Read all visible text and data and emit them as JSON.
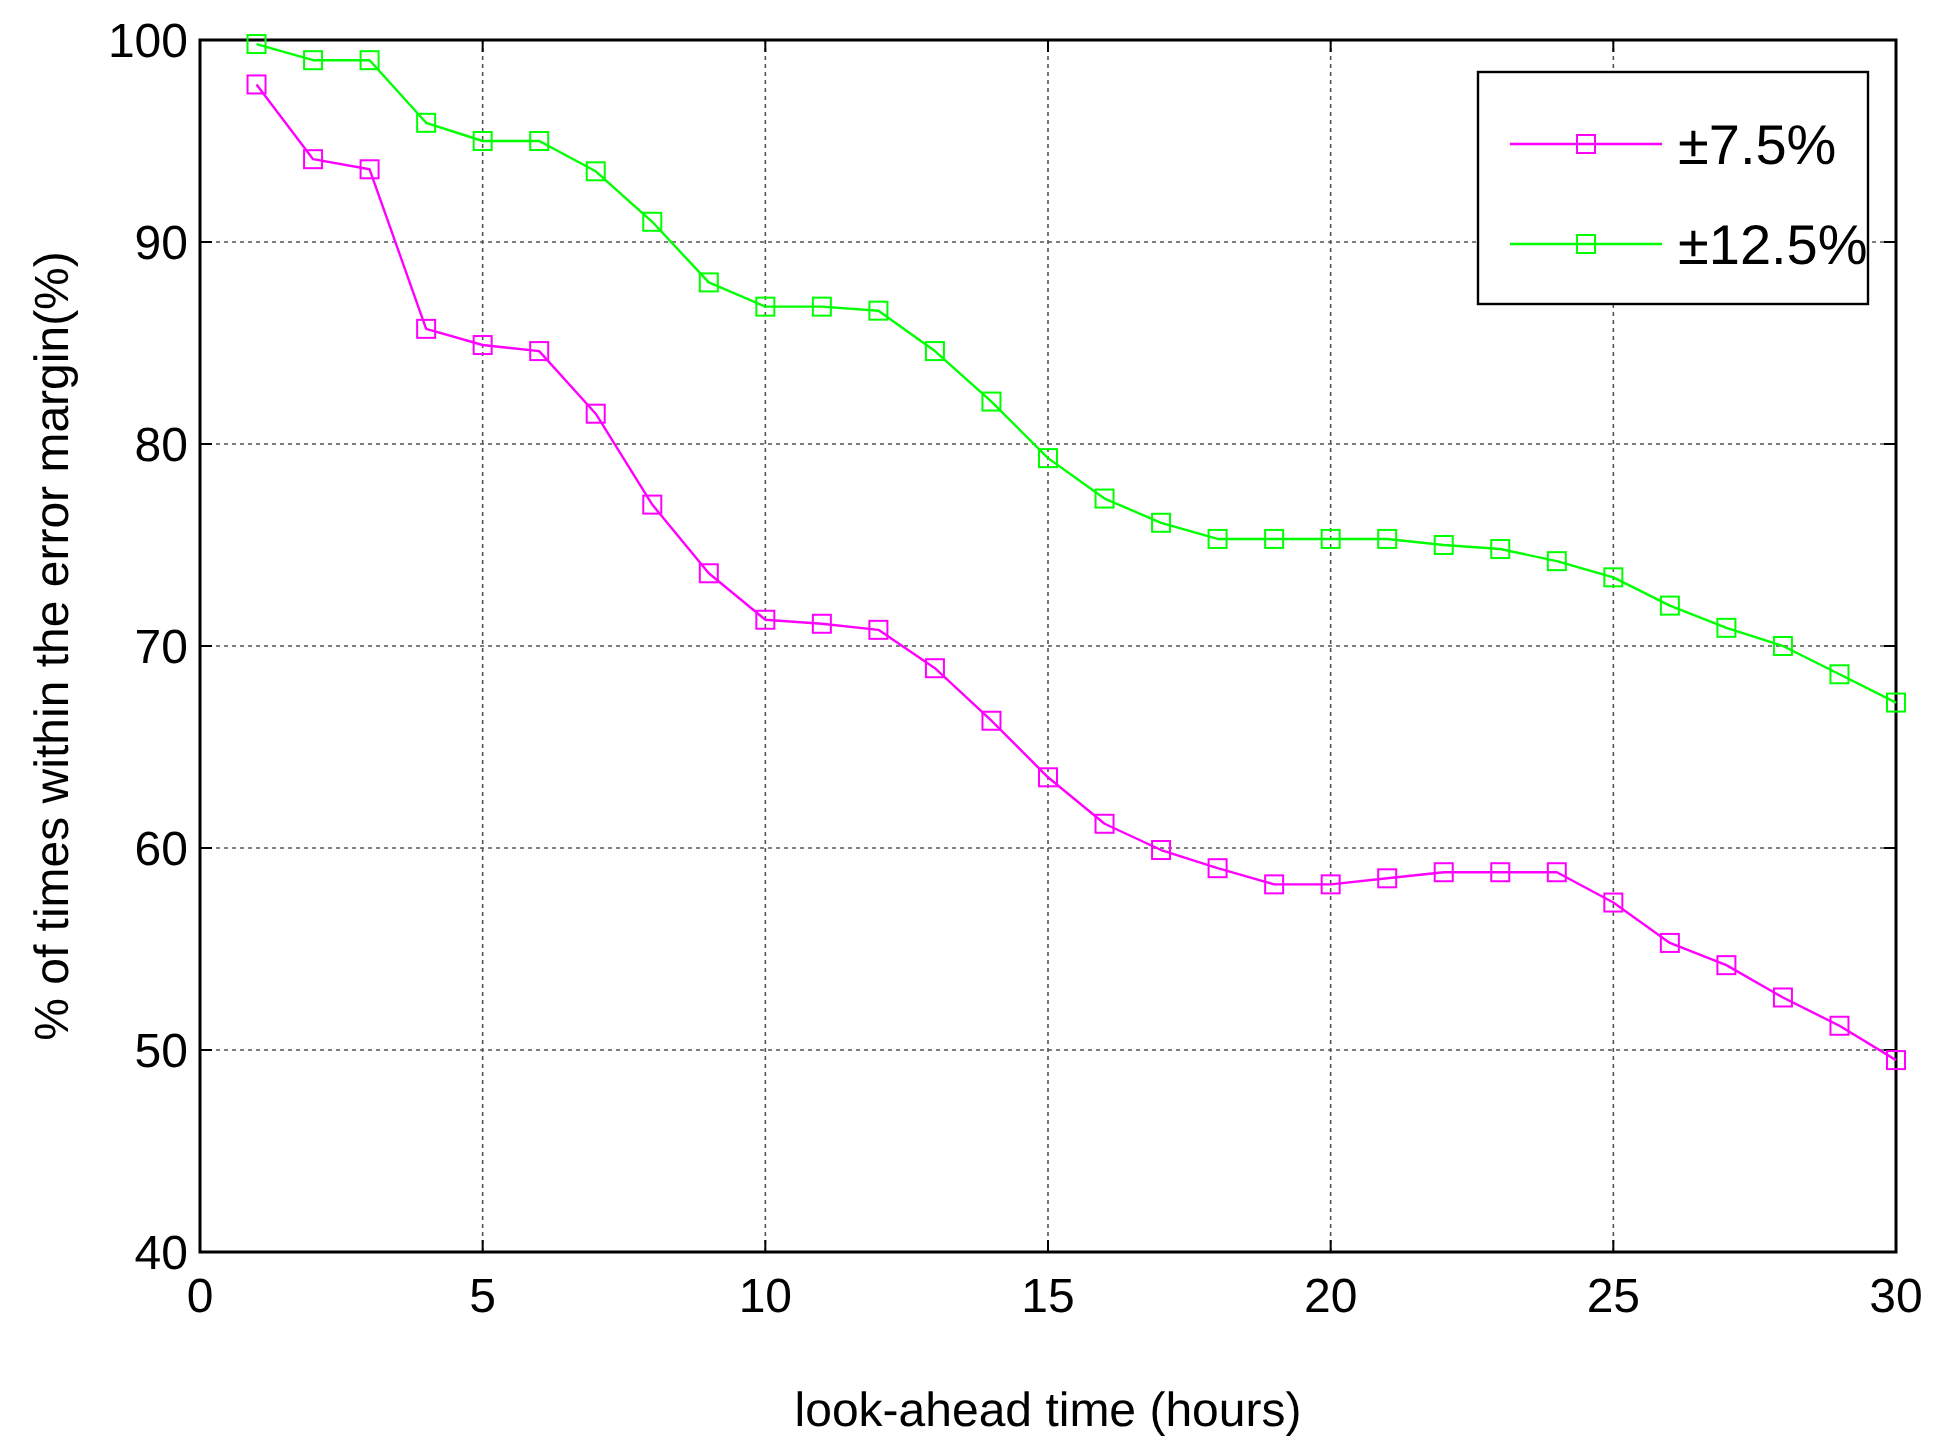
{
  "chart_data": {
    "type": "line",
    "xlabel": "look-ahead time (hours)",
    "ylabel": "% of times within the error margin(%)",
    "x": [
      1,
      2,
      3,
      4,
      5,
      6,
      7,
      8,
      9,
      10,
      11,
      12,
      13,
      14,
      15,
      16,
      17,
      18,
      19,
      20,
      21,
      22,
      23,
      24,
      25,
      26,
      27,
      28,
      29,
      30
    ],
    "series": [
      {
        "name": "±7.5%",
        "color": "#ff00ff",
        "values": [
          97.8,
          94.1,
          93.6,
          85.7,
          84.9,
          84.6,
          81.5,
          77,
          73.6,
          71.3,
          71.1,
          70.8,
          68.9,
          66.3,
          63.5,
          61.2,
          59.9,
          59.0,
          58.2,
          58.2,
          58.5,
          58.8,
          58.8,
          58.8,
          57.3,
          55.3,
          54.2,
          52.6,
          51.2,
          49.5
        ]
      },
      {
        "name": "±12.5%",
        "color": "#00ff00",
        "values": [
          99.8,
          99,
          99,
          95.9,
          95,
          95,
          93.5,
          91,
          88,
          86.8,
          86.8,
          86.6,
          84.6,
          82.1,
          79.3,
          77.3,
          76.1,
          75.3,
          75.3,
          75.3,
          75.3,
          75.0,
          74.8,
          74.2,
          73.4,
          72,
          70.9,
          70,
          68.6,
          67.2
        ]
      }
    ],
    "xlim": [
      0,
      30
    ],
    "xticks": [
      0,
      5,
      10,
      15,
      20,
      25,
      30
    ],
    "ylim": [
      40,
      100
    ],
    "yticks": [
      40,
      50,
      60,
      70,
      80,
      90,
      100
    ],
    "grid": true,
    "legend": "top right",
    "marker": "square",
    "line_style": "solid"
  }
}
